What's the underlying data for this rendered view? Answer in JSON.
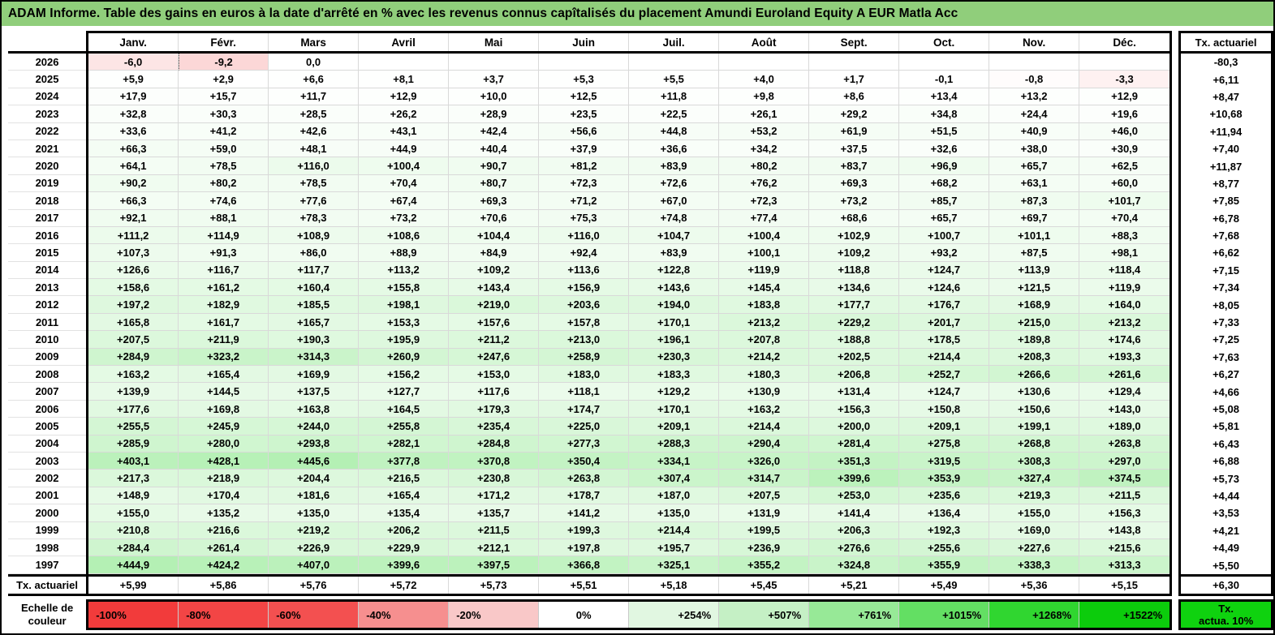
{
  "title": "ADAM Informe. Table des gains en euros à la date d'arrêté en % avec les revenus connus capîtalisés du placement Amundi Euroland Equity A EUR Matla Acc",
  "colors": {
    "title_bg": "#90ce7b",
    "grid_line": "#d9d9d9",
    "positive_full": "#00cc00",
    "negative_full": "#f03b3b",
    "tx_box_green": "#0fd20f"
  },
  "color_scale": {
    "positive_max_pct": 1522,
    "negative_max_pct": -100,
    "negative_divisor": 45
  },
  "table": {
    "months": [
      "Janv.",
      "Févr.",
      "Mars",
      "Avril",
      "Mai",
      "Juin",
      "Juil.",
      "Août",
      "Sept.",
      "Oct.",
      "Nov.",
      "Déc."
    ],
    "right_col_header": "Tx. actuariel",
    "footer_label": "Tx. actuariel",
    "page_break_marker": {
      "row_year": "2026",
      "col_index": 1
    },
    "rows": [
      {
        "year": "2026",
        "values": [
          "-6,0",
          "-9,2",
          "0,0",
          "",
          "",
          "",
          "",
          "",
          "",
          "",
          "",
          ""
        ],
        "tx": "-80,3"
      },
      {
        "year": "2025",
        "values": [
          "+5,9",
          "+2,9",
          "+6,6",
          "+8,1",
          "+3,7",
          "+5,3",
          "+5,5",
          "+4,0",
          "+1,7",
          "-0,1",
          "-0,8",
          "-3,3"
        ],
        "tx": "+6,11"
      },
      {
        "year": "2024",
        "values": [
          "+17,9",
          "+15,7",
          "+11,7",
          "+12,9",
          "+10,0",
          "+12,5",
          "+11,8",
          "+9,8",
          "+8,6",
          "+13,4",
          "+13,2",
          "+12,9"
        ],
        "tx": "+8,47"
      },
      {
        "year": "2023",
        "values": [
          "+32,8",
          "+30,3",
          "+28,5",
          "+26,2",
          "+28,9",
          "+23,5",
          "+22,5",
          "+26,1",
          "+29,2",
          "+34,8",
          "+24,4",
          "+19,6"
        ],
        "tx": "+10,68"
      },
      {
        "year": "2022",
        "values": [
          "+33,6",
          "+41,2",
          "+42,6",
          "+43,1",
          "+42,4",
          "+56,6",
          "+44,8",
          "+53,2",
          "+61,9",
          "+51,5",
          "+40,9",
          "+46,0"
        ],
        "tx": "+11,94"
      },
      {
        "year": "2021",
        "values": [
          "+66,3",
          "+59,0",
          "+48,1",
          "+44,9",
          "+40,4",
          "+37,9",
          "+36,6",
          "+34,2",
          "+37,5",
          "+32,6",
          "+38,0",
          "+30,9"
        ],
        "tx": "+7,40"
      },
      {
        "year": "2020",
        "values": [
          "+64,1",
          "+78,5",
          "+116,0",
          "+100,4",
          "+90,7",
          "+81,2",
          "+83,9",
          "+80,2",
          "+83,7",
          "+96,9",
          "+65,7",
          "+62,5"
        ],
        "tx": "+11,87"
      },
      {
        "year": "2019",
        "values": [
          "+90,2",
          "+80,2",
          "+78,5",
          "+70,4",
          "+80,7",
          "+72,3",
          "+72,6",
          "+76,2",
          "+69,3",
          "+68,2",
          "+63,1",
          "+60,0"
        ],
        "tx": "+8,77"
      },
      {
        "year": "2018",
        "values": [
          "+66,3",
          "+74,6",
          "+77,6",
          "+67,4",
          "+69,3",
          "+71,2",
          "+67,0",
          "+72,3",
          "+73,2",
          "+85,7",
          "+87,3",
          "+101,7"
        ],
        "tx": "+7,85"
      },
      {
        "year": "2017",
        "values": [
          "+92,1",
          "+88,1",
          "+78,3",
          "+73,2",
          "+70,6",
          "+75,3",
          "+74,8",
          "+77,4",
          "+68,6",
          "+65,7",
          "+69,7",
          "+70,4"
        ],
        "tx": "+6,78"
      },
      {
        "year": "2016",
        "values": [
          "+111,2",
          "+114,9",
          "+108,9",
          "+108,6",
          "+104,4",
          "+116,0",
          "+104,7",
          "+100,4",
          "+102,9",
          "+100,7",
          "+101,1",
          "+88,3"
        ],
        "tx": "+7,68"
      },
      {
        "year": "2015",
        "values": [
          "+107,3",
          "+91,3",
          "+86,0",
          "+88,9",
          "+84,9",
          "+92,4",
          "+83,9",
          "+100,1",
          "+109,2",
          "+93,2",
          "+87,5",
          "+98,1"
        ],
        "tx": "+6,62"
      },
      {
        "year": "2014",
        "values": [
          "+126,6",
          "+116,7",
          "+117,7",
          "+113,2",
          "+109,2",
          "+113,6",
          "+122,8",
          "+119,9",
          "+118,8",
          "+124,7",
          "+113,9",
          "+118,4"
        ],
        "tx": "+7,15"
      },
      {
        "year": "2013",
        "values": [
          "+158,6",
          "+161,2",
          "+160,4",
          "+155,8",
          "+143,4",
          "+156,9",
          "+143,6",
          "+145,4",
          "+134,6",
          "+124,6",
          "+121,5",
          "+119,9"
        ],
        "tx": "+7,34"
      },
      {
        "year": "2012",
        "values": [
          "+197,2",
          "+182,9",
          "+185,5",
          "+198,1",
          "+219,0",
          "+203,6",
          "+194,0",
          "+183,8",
          "+177,7",
          "+176,7",
          "+168,9",
          "+164,0"
        ],
        "tx": "+8,05"
      },
      {
        "year": "2011",
        "values": [
          "+165,8",
          "+161,7",
          "+165,7",
          "+153,3",
          "+157,6",
          "+157,8",
          "+170,1",
          "+213,2",
          "+229,2",
          "+201,7",
          "+215,0",
          "+213,2"
        ],
        "tx": "+7,33"
      },
      {
        "year": "2010",
        "values": [
          "+207,5",
          "+211,9",
          "+190,3",
          "+195,9",
          "+211,2",
          "+213,0",
          "+196,1",
          "+207,8",
          "+188,8",
          "+178,5",
          "+189,8",
          "+174,6"
        ],
        "tx": "+7,25"
      },
      {
        "year": "2009",
        "values": [
          "+284,9",
          "+323,2",
          "+314,3",
          "+260,9",
          "+247,6",
          "+258,9",
          "+230,3",
          "+214,2",
          "+202,5",
          "+214,4",
          "+208,3",
          "+193,3"
        ],
        "tx": "+7,63"
      },
      {
        "year": "2008",
        "values": [
          "+163,2",
          "+165,4",
          "+169,9",
          "+156,2",
          "+153,0",
          "+183,0",
          "+183,3",
          "+180,3",
          "+206,8",
          "+252,7",
          "+266,6",
          "+261,6"
        ],
        "tx": "+6,27"
      },
      {
        "year": "2007",
        "values": [
          "+139,9",
          "+144,5",
          "+137,5",
          "+127,7",
          "+117,6",
          "+118,1",
          "+129,2",
          "+130,9",
          "+131,4",
          "+124,7",
          "+130,6",
          "+129,4"
        ],
        "tx": "+4,66"
      },
      {
        "year": "2006",
        "values": [
          "+177,6",
          "+169,8",
          "+163,8",
          "+164,5",
          "+179,3",
          "+174,7",
          "+170,1",
          "+163,2",
          "+156,3",
          "+150,8",
          "+150,6",
          "+143,0"
        ],
        "tx": "+5,08"
      },
      {
        "year": "2005",
        "values": [
          "+255,5",
          "+245,9",
          "+244,0",
          "+255,8",
          "+235,4",
          "+225,0",
          "+209,1",
          "+214,4",
          "+200,0",
          "+209,1",
          "+199,1",
          "+189,0"
        ],
        "tx": "+5,81"
      },
      {
        "year": "2004",
        "values": [
          "+285,9",
          "+280,0",
          "+293,8",
          "+282,1",
          "+284,8",
          "+277,3",
          "+288,3",
          "+290,4",
          "+281,4",
          "+275,8",
          "+268,8",
          "+263,8"
        ],
        "tx": "+6,43"
      },
      {
        "year": "2003",
        "values": [
          "+403,1",
          "+428,1",
          "+445,6",
          "+377,8",
          "+370,8",
          "+350,4",
          "+334,1",
          "+326,0",
          "+351,3",
          "+319,5",
          "+308,3",
          "+297,0"
        ],
        "tx": "+6,88"
      },
      {
        "year": "2002",
        "values": [
          "+217,3",
          "+218,9",
          "+204,4",
          "+216,5",
          "+230,8",
          "+263,8",
          "+307,4",
          "+314,7",
          "+399,6",
          "+353,9",
          "+327,4",
          "+374,5"
        ],
        "tx": "+5,73"
      },
      {
        "year": "2001",
        "values": [
          "+148,9",
          "+170,4",
          "+181,6",
          "+165,4",
          "+171,2",
          "+178,7",
          "+187,0",
          "+207,5",
          "+253,0",
          "+235,6",
          "+219,3",
          "+211,5"
        ],
        "tx": "+4,44"
      },
      {
        "year": "2000",
        "values": [
          "+155,0",
          "+135,2",
          "+135,0",
          "+135,4",
          "+135,7",
          "+141,2",
          "+135,0",
          "+131,9",
          "+141,4",
          "+136,4",
          "+155,0",
          "+156,3"
        ],
        "tx": "+3,53"
      },
      {
        "year": "1999",
        "values": [
          "+210,8",
          "+216,6",
          "+219,2",
          "+206,2",
          "+211,5",
          "+199,3",
          "+214,4",
          "+199,5",
          "+206,3",
          "+192,3",
          "+169,0",
          "+143,8"
        ],
        "tx": "+4,21"
      },
      {
        "year": "1998",
        "values": [
          "+284,4",
          "+261,4",
          "+226,9",
          "+229,9",
          "+212,1",
          "+197,8",
          "+195,7",
          "+236,9",
          "+276,6",
          "+255,6",
          "+227,6",
          "+215,6"
        ],
        "tx": "+4,49"
      },
      {
        "year": "1997",
        "values": [
          "+444,9",
          "+424,2",
          "+407,0",
          "+399,6",
          "+397,5",
          "+366,8",
          "+325,1",
          "+355,2",
          "+324,8",
          "+355,9",
          "+338,3",
          "+313,3"
        ],
        "tx": "+5,50"
      }
    ],
    "footer": {
      "label": "Tx. actuariel",
      "values": [
        "+5,99",
        "+5,86",
        "+5,76",
        "+5,72",
        "+5,73",
        "+5,51",
        "+5,18",
        "+5,45",
        "+5,21",
        "+5,49",
        "+5,36",
        "+5,15"
      ],
      "tx": "+6,30"
    }
  },
  "legend": {
    "label": "Echelle de couleur",
    "cells": [
      {
        "label": "-100%",
        "color": "#f23b3b",
        "align": "left"
      },
      {
        "label": "-80%",
        "color": "#f34545",
        "align": "left"
      },
      {
        "label": "-60%",
        "color": "#f35050",
        "align": "left"
      },
      {
        "label": "-40%",
        "color": "#f68f8f",
        "align": "left"
      },
      {
        "label": "-20%",
        "color": "#f9c8c8",
        "align": "left"
      },
      {
        "label": "0%",
        "color": "#ffffff",
        "align": "center"
      },
      {
        "label": "+254%",
        "color": "#e1f7e1",
        "align": "right"
      },
      {
        "label": "+507%",
        "color": "#c5f0c5",
        "align": "right"
      },
      {
        "label": "+761%",
        "color": "#97e997",
        "align": "right"
      },
      {
        "label": "+1015%",
        "color": "#63df63",
        "align": "right"
      },
      {
        "label": "+1268%",
        "color": "#30d630",
        "align": "right"
      },
      {
        "label": "+1522%",
        "color": "#0ccc0c",
        "align": "right"
      }
    ],
    "tx_box": {
      "line1": "Tx.",
      "line2": "actua. 10%"
    }
  }
}
